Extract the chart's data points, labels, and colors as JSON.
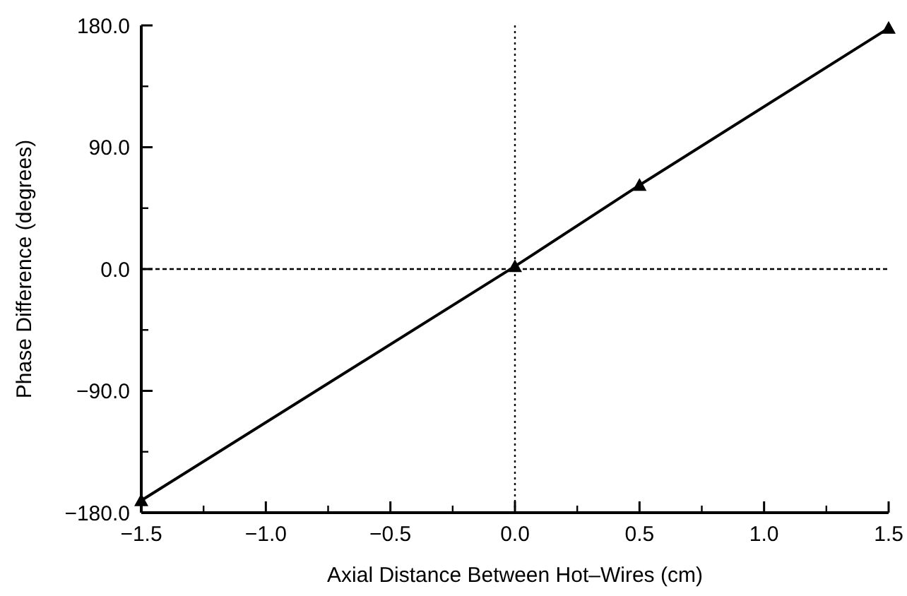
{
  "chart_data": {
    "type": "line",
    "xlabel": "Axial Distance Between Hot–Wires (cm)",
    "ylabel": "Phase Difference (degrees)",
    "x": [
      -1.5,
      0,
      0.5,
      1.5
    ],
    "series": [
      {
        "color": "#000000",
        "values": [
          -171,
          2,
          62,
          178
        ]
      }
    ],
    "marker": "triangle",
    "line_style": "solid",
    "xlim": [
      -1.5,
      1.5
    ],
    "ylim": [
      -180,
      180
    ],
    "xticks": [
      {
        "value": -1.5,
        "label": "−1.5"
      },
      {
        "value": -1,
        "label": "−1.0"
      },
      {
        "value": -0.5,
        "label": "−0.5"
      },
      {
        "value": 0,
        "label": "0.0"
      },
      {
        "value": 0.5,
        "label": "0.5"
      },
      {
        "value": 1,
        "label": "1.0"
      },
      {
        "value": 1.5,
        "label": "1.5"
      }
    ],
    "yticks": [
      {
        "value": -180,
        "label": "−180.0"
      },
      {
        "value": -90,
        "label": "−90.0"
      },
      {
        "value": 0,
        "label": "0.0"
      },
      {
        "value": 90,
        "label": "90.0"
      },
      {
        "value": 180,
        "label": "180.0"
      }
    ],
    "ref_lines": [
      {
        "axis": "x",
        "value": 0,
        "line_style": "dotted"
      },
      {
        "axis": "y",
        "value": 0,
        "line_style": "dashed"
      }
    ]
  }
}
